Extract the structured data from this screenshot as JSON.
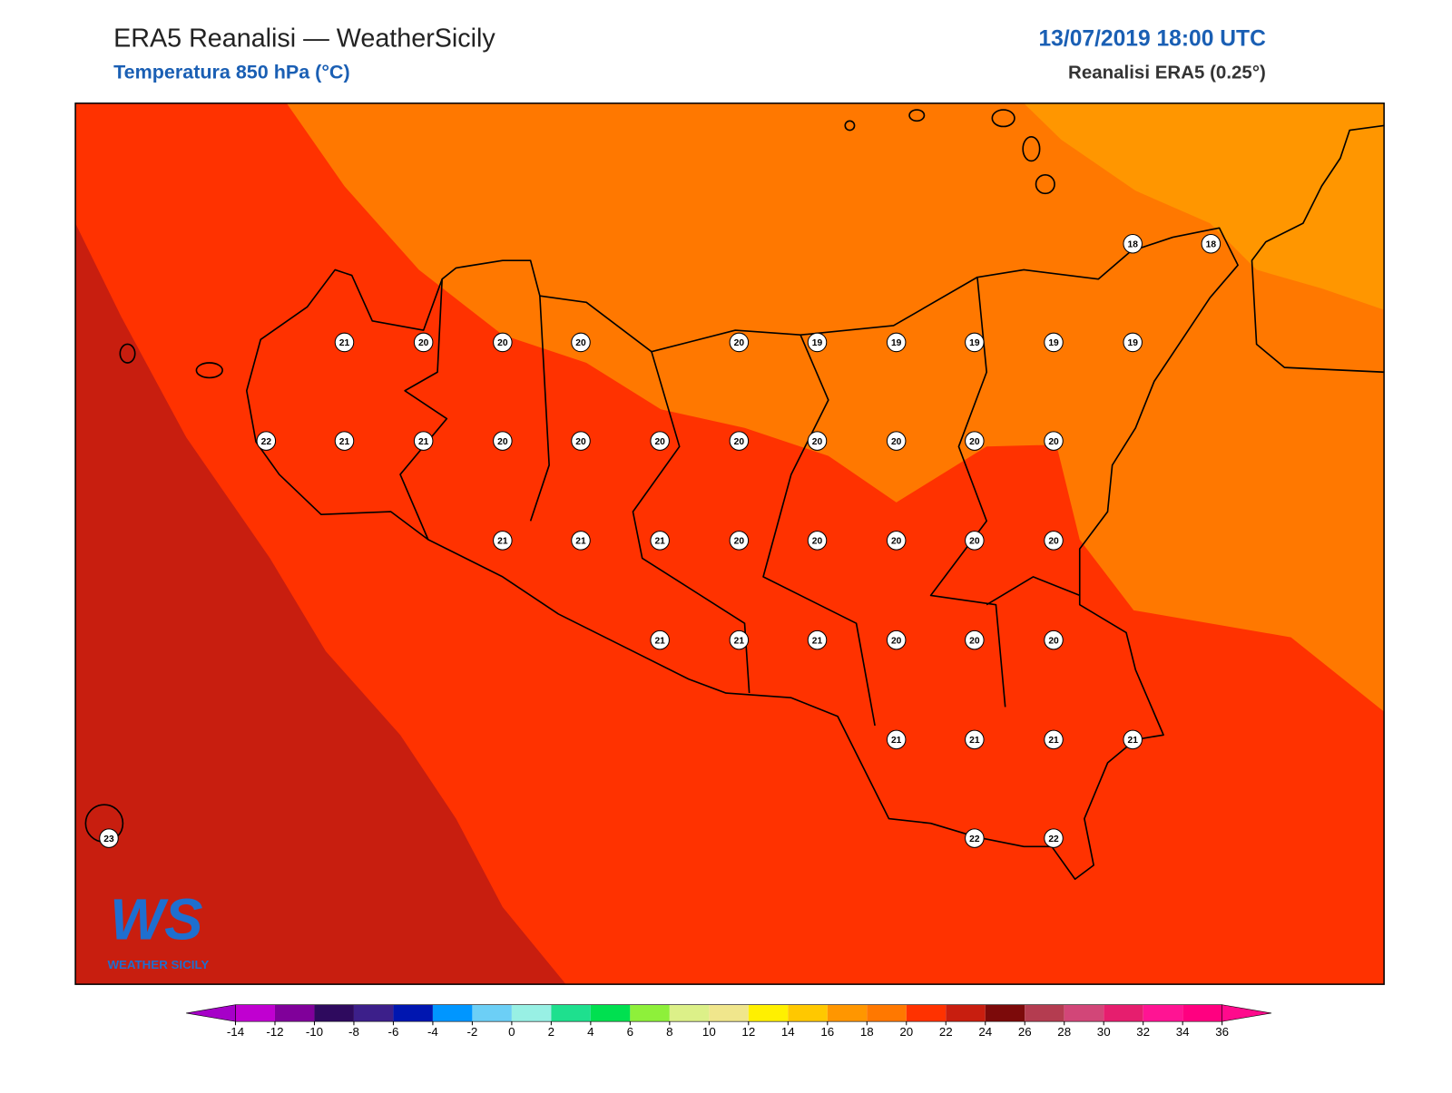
{
  "header": {
    "title": "ERA5 Reanalisi — WeatherSicily",
    "subtitle": "Temperatura 850 hPa (°C)",
    "datetime": "13/07/2019 18:00 UTC",
    "source": "Reanalisi ERA5 (0.25°)"
  },
  "points": [
    18,
    18,
    21,
    20,
    20,
    20,
    20,
    19,
    19,
    19,
    19,
    19,
    22,
    21,
    21,
    20,
    20,
    20,
    20,
    20,
    20,
    20,
    20,
    21,
    21,
    21,
    20,
    20,
    20,
    20,
    20,
    21,
    21,
    21,
    20,
    20,
    20,
    21,
    21,
    21,
    21,
    23,
    22,
    22
  ],
  "colorbar": {
    "range": [
      -14,
      36
    ],
    "ticks": [
      -14,
      -12,
      -10,
      -8,
      -6,
      -4,
      -2,
      0,
      2,
      4,
      6,
      8,
      10,
      12,
      14,
      16,
      18,
      20,
      22,
      24,
      26,
      28,
      30,
      32,
      34,
      36
    ],
    "colors": [
      "#c000d0",
      "#80009a",
      "#2e0a5e",
      "#3c1f8a",
      "#0016b0",
      "#0096ff",
      "#6ccff6",
      "#98f0e4",
      "#1ee08e",
      "#00e050",
      "#8ef03a",
      "#dcf088",
      "#f0e68c",
      "#fff000",
      "#ffc800",
      "#ff9600",
      "#ff7800",
      "#ff3200",
      "#c81e0f",
      "#7c0a0a",
      "#b43c50",
      "#d24678",
      "#e61e6e",
      "#ff1493",
      "#ff0080"
    ],
    "under": "#a600c8",
    "over": "#ff0a8c"
  },
  "logo": {
    "mark": "WS",
    "text": "WEATHER SICILY"
  }
}
